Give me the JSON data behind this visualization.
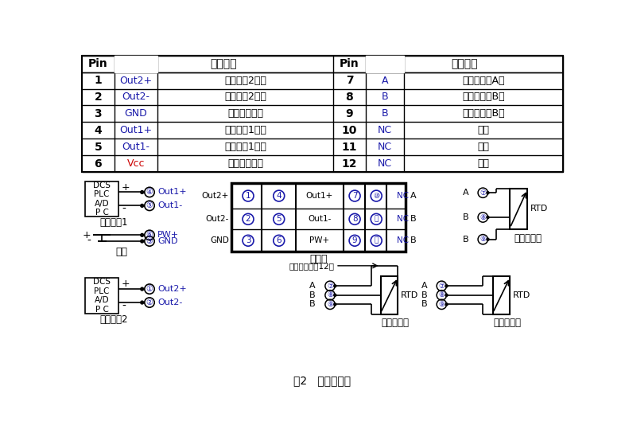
{
  "table_rows": [
    [
      "1",
      "Out2+",
      "输出信号2正端",
      "7",
      "A",
      "热电阵输入A端"
    ],
    [
      "2",
      "Out2-",
      "输出信号2负端",
      "8",
      "B",
      "热电阵输入B端"
    ],
    [
      "3",
      "GND",
      "辅助电源负端",
      "9",
      "B",
      "热电阵输入B端"
    ],
    [
      "4",
      "Out1+",
      "输出信号1正端",
      "10",
      "NC",
      "空脚"
    ],
    [
      "5",
      "Out1-",
      "输出信号1负端",
      "11",
      "NC",
      "空脚"
    ],
    [
      "6",
      "Vcc",
      "辅助电源正端",
      "12",
      "NC",
      "空脚"
    ]
  ],
  "header_pin": "Pin",
  "header_func": "引脚功能",
  "caption": "图2   模块接线图",
  "bg_color": "#ffffff",
  "text_color": "#000000",
  "blue_color": "#1a1aaa",
  "red_color": "#cc0000",
  "line_color": "#000000",
  "dcs_text": "DCS\nPLC\nA/D\nP C",
  "sig_out1": "信号输出1",
  "sig_out2": "信号输出2",
  "power_text": "电源",
  "top_view": "顶视图",
  "three_wire": "三线热电阵",
  "four_wire": "四线热电阵",
  "two_wire": "两线热电阵",
  "no_connect": "不用接或接到12脚"
}
